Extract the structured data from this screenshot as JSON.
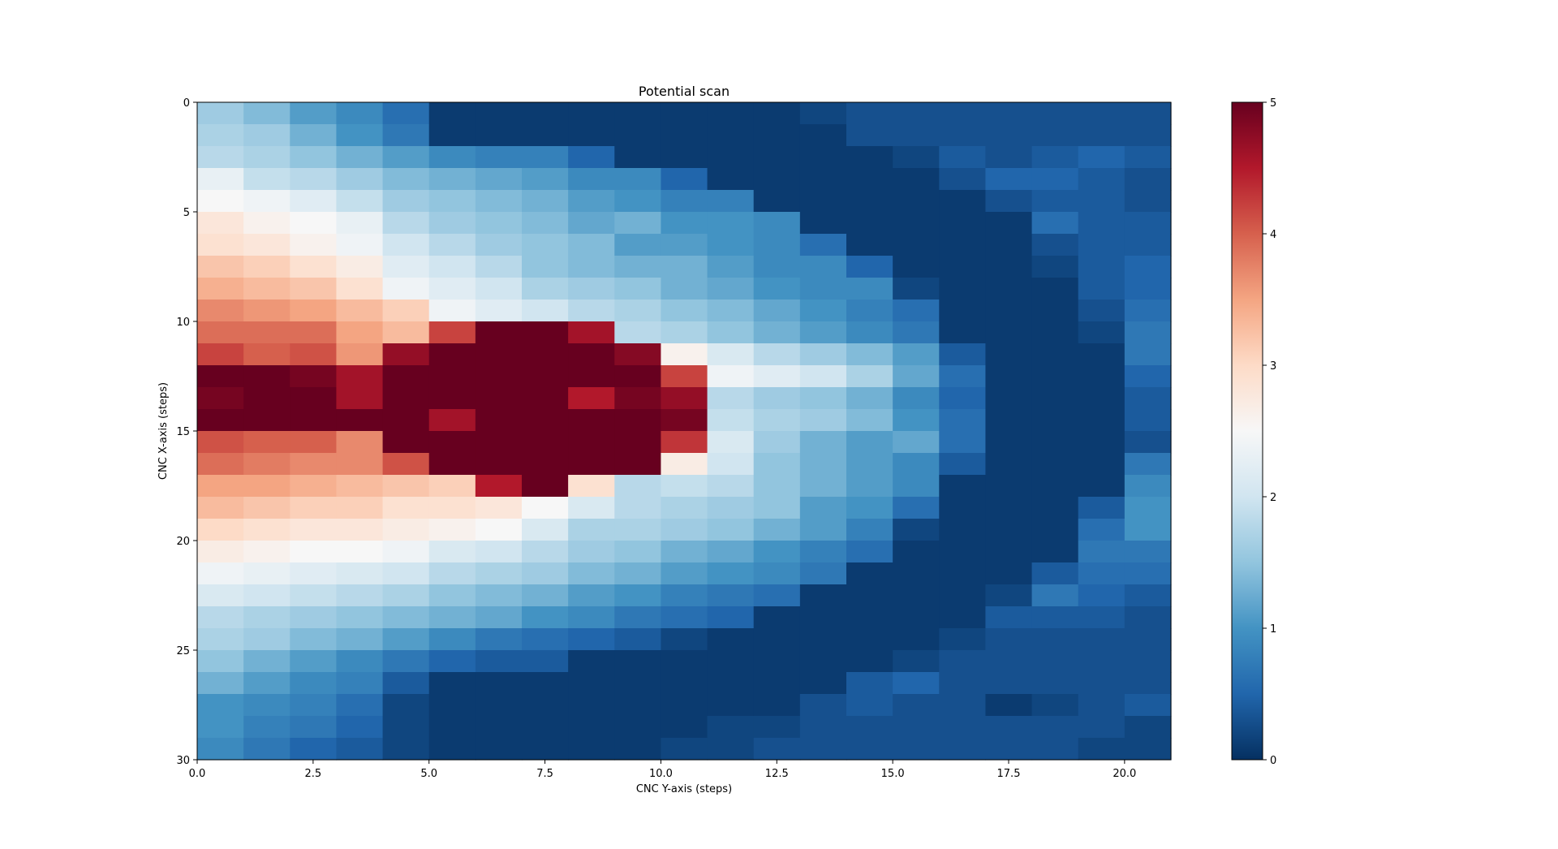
{
  "chart_data": {
    "type": "heatmap",
    "title": "Potential scan",
    "xlabel": "CNC Y-axis (steps)",
    "ylabel": "CNC X-axis (steps)",
    "colormap": "RdBu_r",
    "xlim": [
      0,
      21
    ],
    "ylim": [
      30,
      0
    ],
    "xticks": [
      0.0,
      2.5,
      5.0,
      7.5,
      10.0,
      12.5,
      15.0,
      17.5,
      20.0
    ],
    "xtick_labels": [
      "0.0",
      "2.5",
      "5.0",
      "7.5",
      "10.0",
      "12.5",
      "15.0",
      "17.5",
      "20.0"
    ],
    "yticks": [
      0,
      5,
      10,
      15,
      20,
      25,
      30
    ],
    "ytick_labels": [
      "0",
      "5",
      "10",
      "15",
      "20",
      "25",
      "30"
    ],
    "colorbar_range": [
      0,
      5
    ],
    "colorbar_ticks": [
      0,
      1,
      2,
      3,
      4,
      5
    ],
    "colorbar_tick_labels": [
      "0",
      "1",
      "2",
      "3",
      "4",
      "5"
    ],
    "grid": false,
    "values": [
      [
        1.6,
        1.4,
        1.1,
        0.9,
        0.6,
        0.1,
        0.1,
        0.1,
        0.1,
        0.1,
        0.1,
        0.1,
        0.1,
        0.2,
        0.3,
        0.3,
        0.3,
        0.3,
        0.3,
        0.3,
        0.3
      ],
      [
        1.7,
        1.6,
        1.3,
        1.0,
        0.7,
        0.1,
        0.1,
        0.1,
        0.1,
        0.1,
        0.1,
        0.1,
        0.1,
        0.1,
        0.3,
        0.3,
        0.3,
        0.3,
        0.3,
        0.3,
        0.3
      ],
      [
        1.8,
        1.7,
        1.5,
        1.3,
        1.1,
        0.9,
        0.8,
        0.8,
        0.5,
        0.1,
        0.1,
        0.1,
        0.1,
        0.1,
        0.1,
        0.2,
        0.4,
        0.3,
        0.4,
        0.5,
        0.4
      ],
      [
        2.3,
        1.9,
        1.8,
        1.6,
        1.4,
        1.3,
        1.2,
        1.1,
        0.9,
        0.9,
        0.5,
        0.1,
        0.1,
        0.1,
        0.1,
        0.1,
        0.3,
        0.5,
        0.5,
        0.4,
        0.3
      ],
      [
        2.5,
        2.4,
        2.2,
        1.9,
        1.6,
        1.5,
        1.4,
        1.3,
        1.1,
        1.0,
        0.8,
        0.8,
        0.1,
        0.1,
        0.1,
        0.1,
        0.1,
        0.3,
        0.4,
        0.4,
        0.3
      ],
      [
        2.8,
        2.6,
        2.5,
        2.3,
        1.8,
        1.6,
        1.5,
        1.4,
        1.2,
        1.3,
        1.0,
        1.0,
        0.9,
        0.1,
        0.1,
        0.1,
        0.1,
        0.1,
        0.6,
        0.4,
        0.4
      ],
      [
        2.9,
        2.8,
        2.6,
        2.4,
        2.0,
        1.8,
        1.6,
        1.5,
        1.4,
        1.1,
        1.1,
        1.0,
        0.9,
        0.6,
        0.1,
        0.1,
        0.1,
        0.1,
        0.3,
        0.4,
        0.4
      ],
      [
        3.2,
        3.1,
        2.9,
        2.7,
        2.2,
        2.0,
        1.8,
        1.5,
        1.4,
        1.3,
        1.3,
        1.1,
        0.9,
        0.9,
        0.5,
        0.1,
        0.1,
        0.1,
        0.2,
        0.4,
        0.5
      ],
      [
        3.4,
        3.3,
        3.2,
        2.9,
        2.4,
        2.2,
        2.0,
        1.7,
        1.6,
        1.5,
        1.3,
        1.2,
        1.0,
        0.9,
        0.9,
        0.2,
        0.1,
        0.1,
        0.1,
        0.4,
        0.5
      ],
      [
        3.7,
        3.6,
        3.5,
        3.3,
        3.1,
        2.4,
        2.2,
        2.0,
        1.8,
        1.7,
        1.5,
        1.4,
        1.2,
        1.0,
        0.8,
        0.6,
        0.1,
        0.1,
        0.1,
        0.3,
        0.6
      ],
      [
        3.9,
        3.9,
        3.9,
        3.5,
        3.3,
        4.2,
        5.0,
        5.0,
        4.6,
        1.8,
        1.7,
        1.5,
        1.3,
        1.1,
        0.9,
        0.7,
        0.1,
        0.1,
        0.1,
        0.2,
        0.7
      ],
      [
        4.2,
        4.0,
        4.1,
        3.6,
        4.7,
        5.0,
        5.0,
        5.0,
        5.0,
        4.8,
        2.6,
        2.1,
        1.8,
        1.6,
        1.4,
        1.1,
        0.4,
        0.1,
        0.1,
        0.1,
        0.7
      ],
      [
        5.0,
        5.0,
        4.9,
        4.6,
        5.0,
        5.0,
        5.0,
        5.0,
        5.0,
        5.0,
        4.2,
        2.4,
        2.2,
        2.0,
        1.7,
        1.2,
        0.6,
        0.1,
        0.1,
        0.1,
        0.5
      ],
      [
        4.9,
        5.0,
        5.0,
        4.6,
        5.0,
        5.0,
        5.0,
        5.0,
        4.5,
        4.9,
        4.7,
        1.8,
        1.6,
        1.5,
        1.3,
        0.9,
        0.5,
        0.1,
        0.1,
        0.1,
        0.4
      ],
      [
        5.0,
        5.0,
        5.0,
        5.0,
        5.0,
        4.6,
        5.0,
        5.0,
        5.0,
        5.0,
        4.9,
        1.9,
        1.7,
        1.6,
        1.4,
        1.0,
        0.6,
        0.1,
        0.1,
        0.1,
        0.4
      ],
      [
        4.1,
        4.0,
        4.0,
        3.7,
        5.0,
        5.0,
        5.0,
        5.0,
        5.0,
        5.0,
        4.3,
        2.1,
        1.6,
        1.3,
        1.1,
        1.2,
        0.6,
        0.1,
        0.1,
        0.1,
        0.3
      ],
      [
        3.9,
        3.8,
        3.7,
        3.7,
        4.1,
        5.0,
        5.0,
        5.0,
        5.0,
        5.0,
        2.7,
        2.0,
        1.5,
        1.3,
        1.1,
        0.9,
        0.4,
        0.1,
        0.1,
        0.1,
        0.7
      ],
      [
        3.5,
        3.5,
        3.4,
        3.3,
        3.2,
        3.1,
        4.5,
        5.0,
        2.9,
        1.8,
        1.9,
        1.8,
        1.5,
        1.3,
        1.1,
        0.9,
        0.1,
        0.1,
        0.1,
        0.1,
        0.9
      ],
      [
        3.3,
        3.2,
        3.1,
        3.1,
        2.9,
        2.9,
        2.8,
        2.5,
        2.1,
        1.8,
        1.7,
        1.6,
        1.5,
        1.1,
        1.0,
        0.6,
        0.1,
        0.1,
        0.1,
        0.4,
        1.0
      ],
      [
        3.0,
        2.9,
        2.8,
        2.8,
        2.7,
        2.6,
        2.5,
        2.1,
        1.7,
        1.7,
        1.6,
        1.5,
        1.3,
        1.1,
        0.8,
        0.2,
        0.1,
        0.1,
        0.1,
        0.6,
        1.0
      ],
      [
        2.7,
        2.6,
        2.5,
        2.5,
        2.4,
        2.1,
        2.0,
        1.8,
        1.6,
        1.5,
        1.3,
        1.2,
        1.0,
        0.8,
        0.6,
        0.1,
        0.1,
        0.1,
        0.1,
        0.7,
        0.7
      ],
      [
        2.4,
        2.3,
        2.2,
        2.1,
        2.0,
        1.8,
        1.7,
        1.6,
        1.4,
        1.3,
        1.1,
        1.0,
        0.9,
        0.7,
        0.1,
        0.1,
        0.1,
        0.1,
        0.4,
        0.6,
        0.6
      ],
      [
        2.1,
        2.0,
        1.9,
        1.8,
        1.7,
        1.5,
        1.4,
        1.3,
        1.1,
        1.0,
        0.8,
        0.7,
        0.6,
        0.1,
        0.1,
        0.1,
        0.1,
        0.2,
        0.7,
        0.5,
        0.4
      ],
      [
        1.8,
        1.7,
        1.6,
        1.5,
        1.4,
        1.3,
        1.2,
        1.0,
        0.9,
        0.7,
        0.6,
        0.5,
        0.1,
        0.1,
        0.1,
        0.1,
        0.1,
        0.4,
        0.4,
        0.4,
        0.3
      ],
      [
        1.7,
        1.6,
        1.4,
        1.3,
        1.1,
        0.9,
        0.7,
        0.6,
        0.5,
        0.4,
        0.2,
        0.1,
        0.1,
        0.1,
        0.1,
        0.1,
        0.2,
        0.3,
        0.3,
        0.3,
        0.3
      ],
      [
        1.5,
        1.3,
        1.1,
        0.9,
        0.7,
        0.5,
        0.4,
        0.4,
        0.1,
        0.1,
        0.1,
        0.1,
        0.1,
        0.1,
        0.1,
        0.2,
        0.3,
        0.3,
        0.3,
        0.3,
        0.3
      ],
      [
        1.3,
        1.1,
        0.9,
        0.8,
        0.4,
        0.1,
        0.1,
        0.1,
        0.1,
        0.1,
        0.1,
        0.1,
        0.1,
        0.1,
        0.4,
        0.5,
        0.3,
        0.3,
        0.3,
        0.3,
        0.3
      ],
      [
        1.0,
        0.9,
        0.8,
        0.6,
        0.2,
        0.1,
        0.1,
        0.1,
        0.1,
        0.1,
        0.1,
        0.1,
        0.1,
        0.3,
        0.4,
        0.3,
        0.3,
        0.1,
        0.2,
        0.3,
        0.4
      ],
      [
        1.0,
        0.8,
        0.7,
        0.5,
        0.2,
        0.1,
        0.1,
        0.1,
        0.1,
        0.1,
        0.1,
        0.2,
        0.2,
        0.3,
        0.3,
        0.3,
        0.3,
        0.3,
        0.3,
        0.3,
        0.2
      ],
      [
        0.9,
        0.7,
        0.5,
        0.4,
        0.2,
        0.1,
        0.1,
        0.1,
        0.1,
        0.1,
        0.2,
        0.2,
        0.3,
        0.3,
        0.3,
        0.3,
        0.3,
        0.3,
        0.3,
        0.2,
        0.2
      ]
    ]
  }
}
